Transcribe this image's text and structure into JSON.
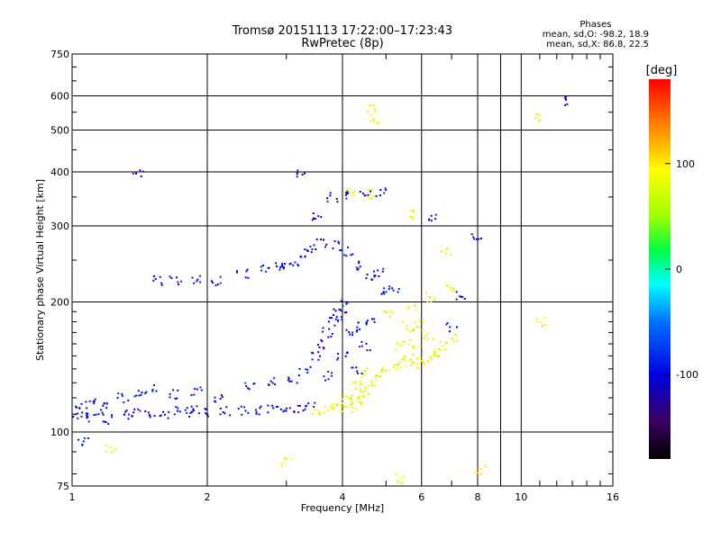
{
  "chart_data": {
    "type": "scatter",
    "title": "Tromsø 20151113 17:22:00–17:23:43",
    "subtitle": "RwPretec (8p)",
    "xlabel": "Frequency [MHz]",
    "ylabel": "Stationary phase Virtual Height [km]",
    "x_scale": "log",
    "y_scale": "log",
    "xlim": [
      1,
      16
    ],
    "ylim": [
      75,
      750
    ],
    "x_ticks": [
      1,
      2,
      4,
      6,
      8,
      10,
      16
    ],
    "x_tick_labels": [
      "1",
      "2",
      "4",
      "6",
      "8",
      "10",
      "16"
    ],
    "y_ticks": [
      75,
      100,
      200,
      300,
      400,
      500,
      600,
      750
    ],
    "y_tick_labels": [
      "75",
      "100",
      "200",
      "300",
      "400",
      "500",
      "600",
      "750"
    ],
    "grid": true,
    "stats": {
      "heading": "Phases",
      "line1": "mean, sd,O: -98.2, 18.9",
      "line2": "mean, sd,X:  86.8, 22.5"
    },
    "colorbar": {
      "label": "[deg]",
      "range": [
        -180,
        180
      ],
      "ticks": [
        100,
        0,
        -100
      ],
      "tick_labels": [
        "100",
        "0",
        "-100"
      ]
    },
    "series": [
      {
        "mode": "O",
        "phase_mean": -98.2,
        "phase_sd": 18.9,
        "points": [
          [
            1.0,
            109
          ],
          [
            1.05,
            110
          ],
          [
            1.1,
            108
          ],
          [
            1.15,
            110
          ],
          [
            1.2,
            107
          ],
          [
            1.3,
            110
          ],
          [
            1.4,
            111
          ],
          [
            1.5,
            111
          ],
          [
            1.6,
            110
          ],
          [
            1.7,
            112
          ],
          [
            1.8,
            111
          ],
          [
            1.9,
            112
          ],
          [
            2.0,
            111
          ],
          [
            2.2,
            112
          ],
          [
            2.4,
            112
          ],
          [
            2.6,
            112
          ],
          [
            2.8,
            113
          ],
          [
            3.0,
            113
          ],
          [
            3.2,
            114
          ],
          [
            3.4,
            114
          ],
          [
            1.05,
            116
          ],
          [
            1.1,
            118
          ],
          [
            1.2,
            115
          ],
          [
            1.3,
            120
          ],
          [
            1.4,
            124
          ],
          [
            1.5,
            126
          ],
          [
            1.7,
            122
          ],
          [
            1.9,
            124
          ],
          [
            2.1,
            119
          ],
          [
            2.5,
            128
          ],
          [
            2.8,
            131
          ],
          [
            3.1,
            131
          ],
          [
            3.3,
            138
          ],
          [
            3.5,
            150
          ],
          [
            3.6,
            160
          ],
          [
            3.7,
            170
          ],
          [
            3.8,
            180
          ],
          [
            3.9,
            190
          ],
          [
            4.0,
            200
          ],
          [
            4.0,
            185
          ],
          [
            4.2,
            170
          ],
          [
            4.4,
            175
          ],
          [
            4.6,
            181
          ],
          [
            4.3,
            140
          ],
          [
            4.0,
            150
          ],
          [
            3.7,
            135
          ],
          [
            4.5,
            158
          ],
          [
            1.55,
            224
          ],
          [
            1.7,
            224
          ],
          [
            1.9,
            225
          ],
          [
            2.1,
            224
          ],
          [
            2.4,
            232
          ],
          [
            2.7,
            238
          ],
          [
            2.9,
            242
          ],
          [
            3.0,
            245
          ],
          [
            3.1,
            243
          ],
          [
            3.3,
            260
          ],
          [
            3.4,
            265
          ],
          [
            3.6,
            275
          ],
          [
            3.9,
            270
          ],
          [
            4.1,
            262
          ],
          [
            4.4,
            243
          ],
          [
            4.6,
            230
          ],
          [
            4.8,
            233
          ],
          [
            4.2,
            352
          ],
          [
            4.5,
            357
          ],
          [
            4.9,
            360
          ],
          [
            3.8,
            350
          ],
          [
            3.5,
            316
          ],
          [
            3.2,
            397
          ],
          [
            1.4,
            398
          ],
          [
            5.0,
            210
          ],
          [
            5.2,
            215
          ],
          [
            6.3,
            315
          ],
          [
            12.5,
            585
          ],
          [
            8.0,
            280
          ],
          [
            7.3,
            208
          ],
          [
            7.0,
            175
          ],
          [
            1.06,
            95
          ]
        ]
      },
      {
        "mode": "X",
        "phase_mean": 86.8,
        "phase_sd": 22.5,
        "points": [
          [
            3.5,
            112
          ],
          [
            3.7,
            113
          ],
          [
            3.9,
            114
          ],
          [
            4.1,
            114
          ],
          [
            4.2,
            116
          ],
          [
            4.3,
            118
          ],
          [
            4.4,
            122
          ],
          [
            4.5,
            125
          ],
          [
            4.6,
            130
          ],
          [
            4.3,
            128
          ],
          [
            4.1,
            121
          ],
          [
            3.9,
            118
          ],
          [
            4.5,
            137
          ],
          [
            4.8,
            137
          ],
          [
            5.0,
            139
          ],
          [
            5.2,
            141
          ],
          [
            5.4,
            145
          ],
          [
            5.6,
            150
          ],
          [
            5.8,
            160
          ],
          [
            5.6,
            175
          ],
          [
            5.9,
            178
          ],
          [
            5.8,
            142
          ],
          [
            6.0,
            146
          ],
          [
            6.2,
            148
          ],
          [
            6.4,
            150
          ],
          [
            6.6,
            153
          ],
          [
            6.8,
            158
          ],
          [
            7.0,
            165
          ],
          [
            6.2,
            168
          ],
          [
            5.4,
            158
          ],
          [
            5.1,
            188
          ],
          [
            5.7,
            195
          ],
          [
            6.3,
            205
          ],
          [
            6.9,
            215
          ],
          [
            4.6,
            355
          ],
          [
            4.2,
            360
          ],
          [
            4.6,
            565
          ],
          [
            11.0,
            533
          ],
          [
            11.0,
            180
          ],
          [
            8.1,
            82
          ],
          [
            5.4,
            78
          ],
          [
            3.0,
            85
          ],
          [
            1.22,
            91
          ],
          [
            4.7,
            530
          ],
          [
            5.8,
            320
          ],
          [
            6.8,
            260
          ]
        ]
      }
    ]
  }
}
